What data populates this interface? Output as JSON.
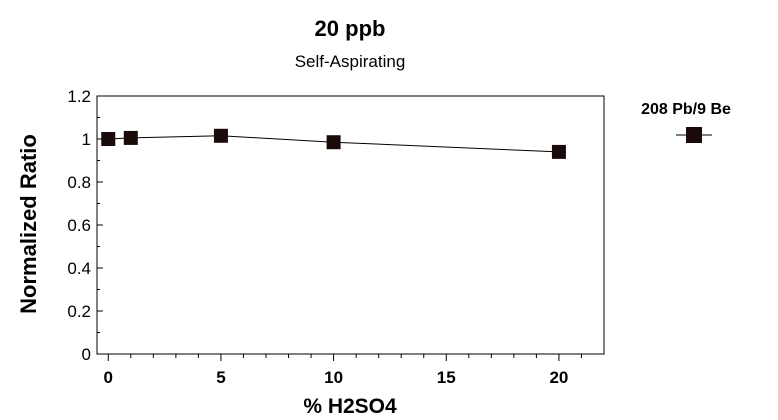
{
  "chart_data": {
    "type": "line",
    "title": "20 ppb",
    "subtitle": "Self-Aspirating",
    "xlabel": "% H2SO4",
    "ylabel": "Normalized Ratio",
    "xlim": [
      -0.5,
      22
    ],
    "ylim": [
      0,
      1.2
    ],
    "x_ticks": [
      0,
      5,
      10,
      15,
      20
    ],
    "y_ticks": [
      0,
      0.2,
      0.4,
      0.6,
      0.8,
      1,
      1.2
    ],
    "x_tick_labels": [
      "0",
      "5",
      "10",
      "15",
      "20"
    ],
    "y_tick_labels": [
      "0",
      "0.2",
      "0.4",
      "0.6",
      "0.8",
      "1",
      "1.2"
    ],
    "grid": false,
    "legend_position": "top-right",
    "series": [
      {
        "name": "208 Pb/9 Be",
        "marker": "square",
        "color": "#1a0a0a",
        "x": [
          0,
          1,
          5,
          10,
          20
        ],
        "y": [
          1.0,
          1.005,
          1.015,
          0.985,
          0.94
        ]
      }
    ]
  }
}
